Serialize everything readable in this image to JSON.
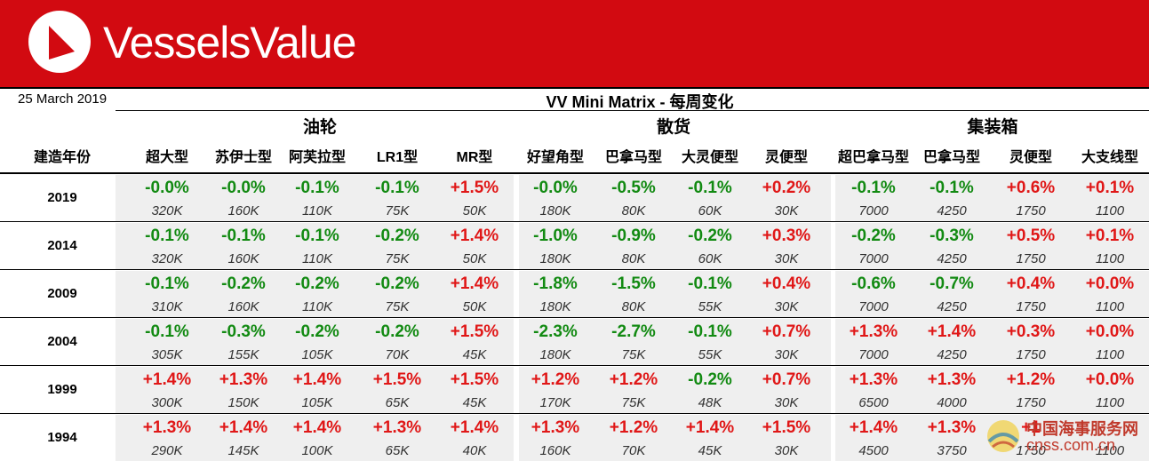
{
  "brand": "VesselsValue",
  "date": "25 March 2019",
  "title": "VV Mini Matrix - 每周变化",
  "year_header": "建造年份",
  "groups": [
    {
      "label": "油轮",
      "columns": [
        "超大型",
        "苏伊士型",
        "阿芙拉型",
        "LR1型",
        "MR型"
      ]
    },
    {
      "label": "散货",
      "columns": [
        "好望角型",
        "巴拿马型",
        "大灵便型",
        "灵便型"
      ]
    },
    {
      "label": "集装箱",
      "columns": [
        "超巴拿马型",
        "巴拿马型",
        "灵便型",
        "大支线型"
      ]
    }
  ],
  "rows": [
    {
      "year": "2019",
      "cells": [
        [
          "-0.0%",
          "320K"
        ],
        [
          "-0.0%",
          "160K"
        ],
        [
          "-0.1%",
          "110K"
        ],
        [
          "-0.1%",
          "75K"
        ],
        [
          "+1.5%",
          "50K"
        ],
        [
          "-0.0%",
          "180K"
        ],
        [
          "-0.5%",
          "80K"
        ],
        [
          "-0.1%",
          "60K"
        ],
        [
          "+0.2%",
          "30K"
        ],
        [
          "-0.1%",
          "7000"
        ],
        [
          "-0.1%",
          "4250"
        ],
        [
          "+0.6%",
          "1750"
        ],
        [
          "+0.1%",
          "1100"
        ]
      ]
    },
    {
      "year": "2014",
      "cells": [
        [
          "-0.1%",
          "320K"
        ],
        [
          "-0.1%",
          "160K"
        ],
        [
          "-0.1%",
          "110K"
        ],
        [
          "-0.2%",
          "75K"
        ],
        [
          "+1.4%",
          "50K"
        ],
        [
          "-1.0%",
          "180K"
        ],
        [
          "-0.9%",
          "80K"
        ],
        [
          "-0.2%",
          "60K"
        ],
        [
          "+0.3%",
          "30K"
        ],
        [
          "-0.2%",
          "7000"
        ],
        [
          "-0.3%",
          "4250"
        ],
        [
          "+0.5%",
          "1750"
        ],
        [
          "+0.1%",
          "1100"
        ]
      ]
    },
    {
      "year": "2009",
      "cells": [
        [
          "-0.1%",
          "310K"
        ],
        [
          "-0.2%",
          "160K"
        ],
        [
          "-0.2%",
          "110K"
        ],
        [
          "-0.2%",
          "75K"
        ],
        [
          "+1.4%",
          "50K"
        ],
        [
          "-1.8%",
          "180K"
        ],
        [
          "-1.5%",
          "80K"
        ],
        [
          "-0.1%",
          "55K"
        ],
        [
          "+0.4%",
          "30K"
        ],
        [
          "-0.6%",
          "7000"
        ],
        [
          "-0.7%",
          "4250"
        ],
        [
          "+0.4%",
          "1750"
        ],
        [
          "+0.0%",
          "1100"
        ]
      ]
    },
    {
      "year": "2004",
      "cells": [
        [
          "-0.1%",
          "305K"
        ],
        [
          "-0.3%",
          "155K"
        ],
        [
          "-0.2%",
          "105K"
        ],
        [
          "-0.2%",
          "70K"
        ],
        [
          "+1.5%",
          "45K"
        ],
        [
          "-2.3%",
          "180K"
        ],
        [
          "-2.7%",
          "75K"
        ],
        [
          "-0.1%",
          "55K"
        ],
        [
          "+0.7%",
          "30K"
        ],
        [
          "+1.3%",
          "7000"
        ],
        [
          "+1.4%",
          "4250"
        ],
        [
          "+0.3%",
          "1750"
        ],
        [
          "+0.0%",
          "1100"
        ]
      ]
    },
    {
      "year": "1999",
      "cells": [
        [
          "+1.4%",
          "300K"
        ],
        [
          "+1.3%",
          "150K"
        ],
        [
          "+1.4%",
          "105K"
        ],
        [
          "+1.5%",
          "65K"
        ],
        [
          "+1.5%",
          "45K"
        ],
        [
          "+1.2%",
          "170K"
        ],
        [
          "+1.2%",
          "75K"
        ],
        [
          "-0.2%",
          "48K"
        ],
        [
          "+0.7%",
          "30K"
        ],
        [
          "+1.3%",
          "6500"
        ],
        [
          "+1.3%",
          "4000"
        ],
        [
          "+1.2%",
          "1750"
        ],
        [
          "+0.0%",
          "1100"
        ]
      ]
    },
    {
      "year": "1994",
      "cells": [
        [
          "+1.3%",
          "290K"
        ],
        [
          "+1.4%",
          "145K"
        ],
        [
          "+1.4%",
          "100K"
        ],
        [
          "+1.3%",
          "65K"
        ],
        [
          "+1.4%",
          "40K"
        ],
        [
          "+1.3%",
          "160K"
        ],
        [
          "+1.2%",
          "70K"
        ],
        [
          "+1.4%",
          "45K"
        ],
        [
          "+1.5%",
          "30K"
        ],
        [
          "+1.4%",
          "4500"
        ],
        [
          "+1.3%",
          "3750"
        ],
        [
          "+1",
          "1750"
        ],
        [
          "",
          "1100"
        ]
      ]
    }
  ],
  "watermark": {
    "cn": "中国海事服务网",
    "en": "cnss.com.cn"
  },
  "colors": {
    "banner": "#d20a11",
    "positive": "#e01717",
    "negative": "#128a12",
    "shade": "#efefef"
  }
}
